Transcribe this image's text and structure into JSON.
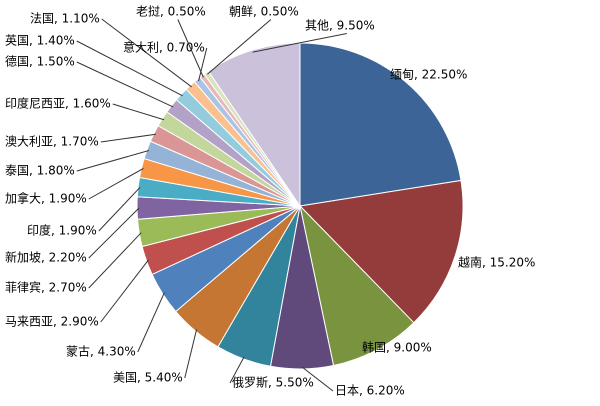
{
  "chart_data": {
    "type": "pie",
    "values": [
      22.5,
      15.2,
      9.0,
      6.2,
      5.5,
      5.4,
      4.3,
      2.9,
      2.7,
      2.2,
      1.9,
      1.9,
      1.8,
      1.7,
      1.6,
      1.5,
      1.4,
      1.1,
      0.7,
      0.5,
      0.5,
      9.5
    ],
    "value_labels": [
      "缅甸, 22.50%",
      "越南, 15.20%",
      "韩国, 9.00%",
      "日本, 6.20%",
      "俄罗斯, 5.50%",
      "美国, 5.40%",
      "蒙古, 4.30%",
      "马来西亚, 2.90%",
      "菲律宾, 2.70%",
      "新加坡, 2.20%",
      "印度, 1.90%",
      "加拿大, 1.90%",
      "泰国, 1.80%",
      "澳大利亚, 1.70%",
      "印度尼西亚, 1.60%",
      "德国, 1.50%",
      "英国, 1.40%",
      "法国, 1.10%",
      "意大利, 0.70%",
      "老挝, 0.50%",
      "朝鲜, 0.50%",
      "其他, 9.50%"
    ],
    "colors": [
      "#3c6496",
      "#943c3c",
      "#7a933e",
      "#604a7b",
      "#31849b",
      "#c57632",
      "#4f81bd",
      "#c0504d",
      "#9bbb59",
      "#8064a2",
      "#4bacc6",
      "#f79646",
      "#95b3d7",
      "#d99694",
      "#c3d69b",
      "#b3a2c7",
      "#93cddd",
      "#fac090",
      "#a9c4e4",
      "#e6b9b8",
      "#d7e4bd",
      "#ccc1da"
    ]
  }
}
